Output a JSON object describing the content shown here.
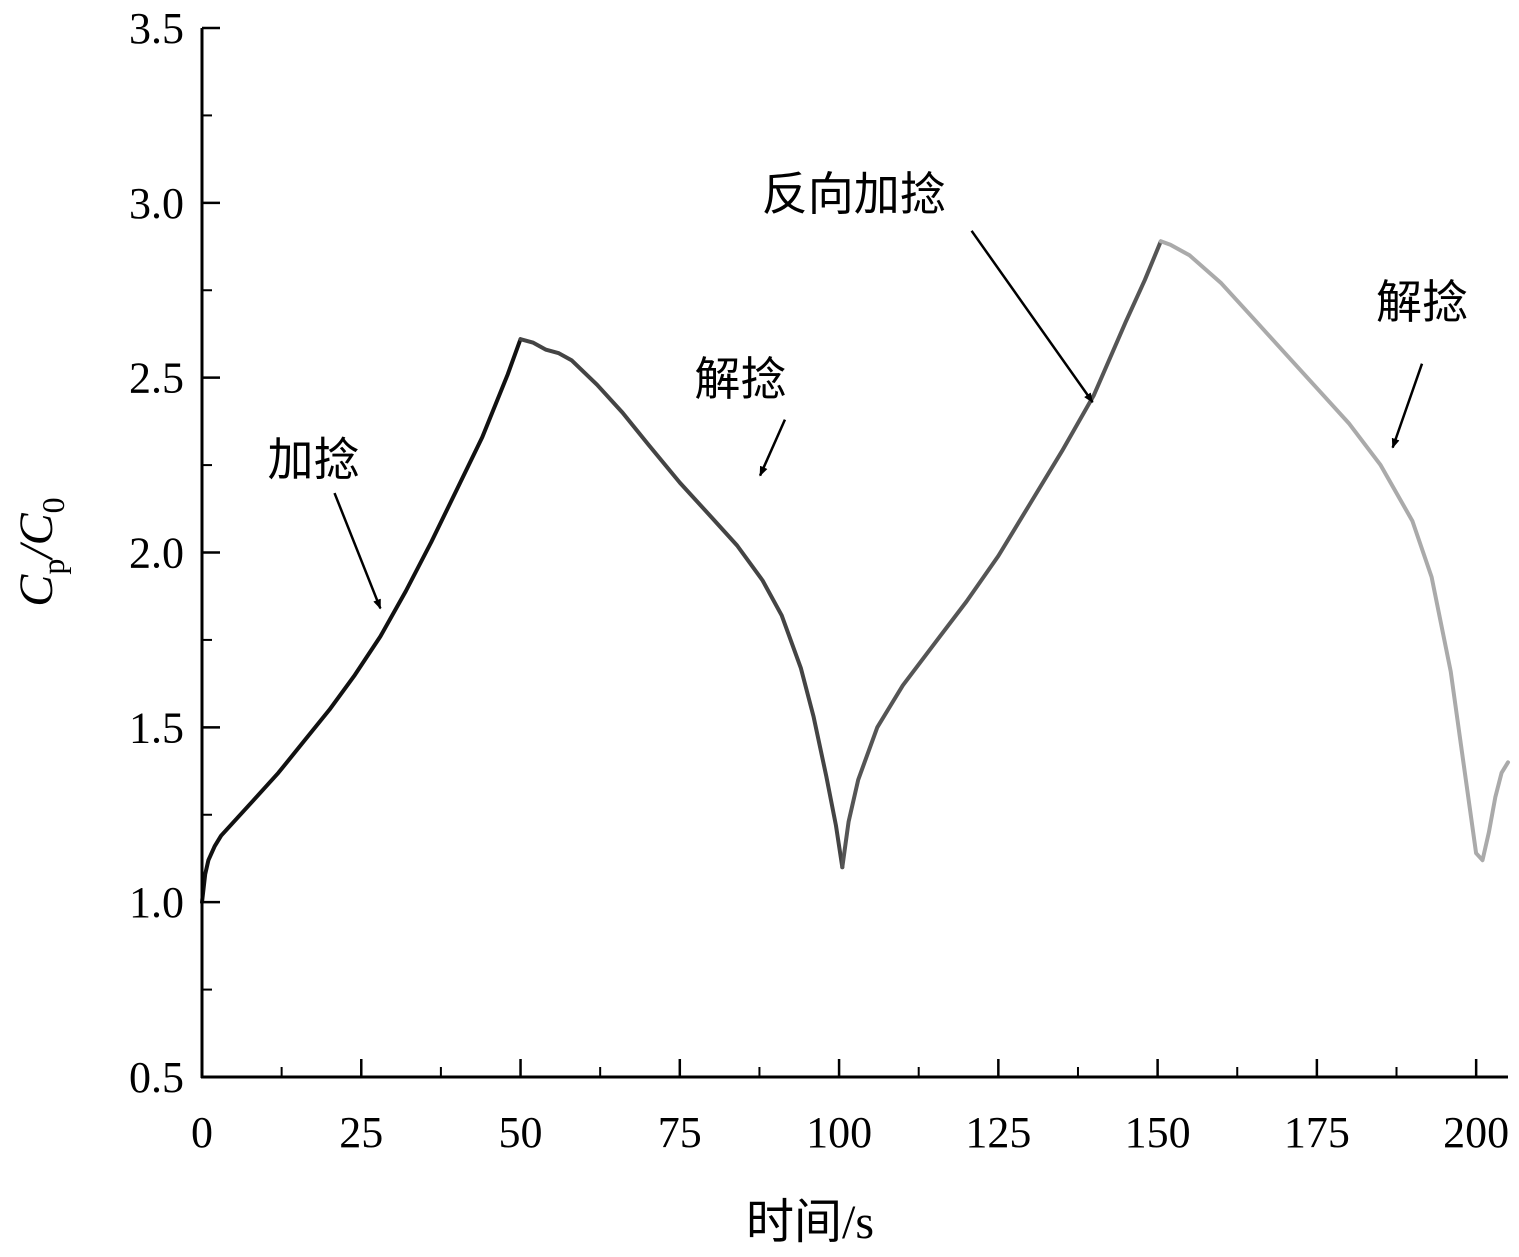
{
  "chart_data": {
    "type": "line",
    "title": "",
    "xlabel": "时间/s",
    "ylabel_main": "C",
    "ylabel_sub": "p",
    "ylabel_sep": "/C",
    "ylabel_sub2": "0",
    "xlim": [
      0,
      205
    ],
    "ylim": [
      0.5,
      3.5
    ],
    "xticks": [
      0,
      25,
      50,
      75,
      100,
      125,
      150,
      175,
      200
    ],
    "xtick_labels": [
      "0",
      "25",
      "50",
      "75",
      "100",
      "125",
      "150",
      "175",
      "200"
    ],
    "xminor": [
      12.5,
      37.5,
      62.5,
      87.5,
      112.5,
      137.5,
      162.5,
      187.5
    ],
    "yticks": [
      0.5,
      1.0,
      1.5,
      2.0,
      2.5,
      3.0,
      3.5
    ],
    "ytick_labels": [
      "0.5",
      "1.0",
      "1.5",
      "2.0",
      "2.5",
      "3.0",
      "3.5"
    ],
    "yminor": [
      0.75,
      1.25,
      1.75,
      2.25,
      2.75,
      3.25
    ],
    "grid": false,
    "series": [
      {
        "color": "#111111",
        "x": [
          0,
          0.5,
          1,
          2,
          3,
          5,
          8,
          12,
          16,
          20,
          24,
          28,
          32,
          36,
          40,
          44,
          48,
          50
        ],
        "y": [
          1.0,
          1.08,
          1.12,
          1.16,
          1.19,
          1.23,
          1.29,
          1.37,
          1.46,
          1.55,
          1.65,
          1.76,
          1.89,
          2.03,
          2.18,
          2.33,
          2.51,
          2.61
        ]
      },
      {
        "color": "#444444",
        "x": [
          50,
          52,
          54,
          56,
          58,
          62,
          66,
          70,
          75,
          80,
          84,
          88,
          91,
          94,
          96,
          98,
          99.5,
          100.5
        ],
        "y": [
          2.61,
          2.6,
          2.58,
          2.57,
          2.55,
          2.48,
          2.4,
          2.31,
          2.2,
          2.1,
          2.02,
          1.92,
          1.82,
          1.67,
          1.53,
          1.36,
          1.22,
          1.1
        ]
      },
      {
        "color": "#555555",
        "x": [
          100.5,
          101.5,
          103,
          106,
          110,
          115,
          120,
          125,
          130,
          135,
          140,
          145,
          148,
          150.5
        ],
        "y": [
          1.1,
          1.23,
          1.35,
          1.5,
          1.62,
          1.74,
          1.86,
          1.99,
          2.14,
          2.29,
          2.45,
          2.66,
          2.78,
          2.89
        ]
      },
      {
        "color": "#aaaaaa",
        "x": [
          150.5,
          152,
          155,
          160,
          165,
          170,
          175,
          180,
          185,
          190,
          193,
          196,
          198,
          200,
          201,
          202,
          203,
          204,
          205
        ],
        "y": [
          2.89,
          2.88,
          2.85,
          2.77,
          2.67,
          2.57,
          2.47,
          2.37,
          2.25,
          2.09,
          1.93,
          1.66,
          1.4,
          1.14,
          1.12,
          1.2,
          1.3,
          1.37,
          1.4
        ]
      }
    ],
    "annotations": [
      {
        "text": "加捻",
        "text_xy": [
          17.5,
          2.22
        ],
        "tail": [
          20.8,
          2.17
        ],
        "head": [
          28,
          1.84
        ]
      },
      {
        "text": "解捻",
        "text_xy": [
          84.5,
          2.45
        ],
        "tail": [
          91.5,
          2.38
        ],
        "head": [
          87.6,
          2.22
        ]
      },
      {
        "text": "反向加捻",
        "text_xy": [
          102.3,
          2.98
        ],
        "tail": [
          120.8,
          2.92
        ],
        "head": [
          139.8,
          2.43
        ]
      },
      {
        "text": "解捻",
        "text_xy": [
          191.5,
          2.67
        ],
        "tail": [
          191.5,
          2.54
        ],
        "head": [
          186.9,
          2.3
        ]
      }
    ]
  }
}
